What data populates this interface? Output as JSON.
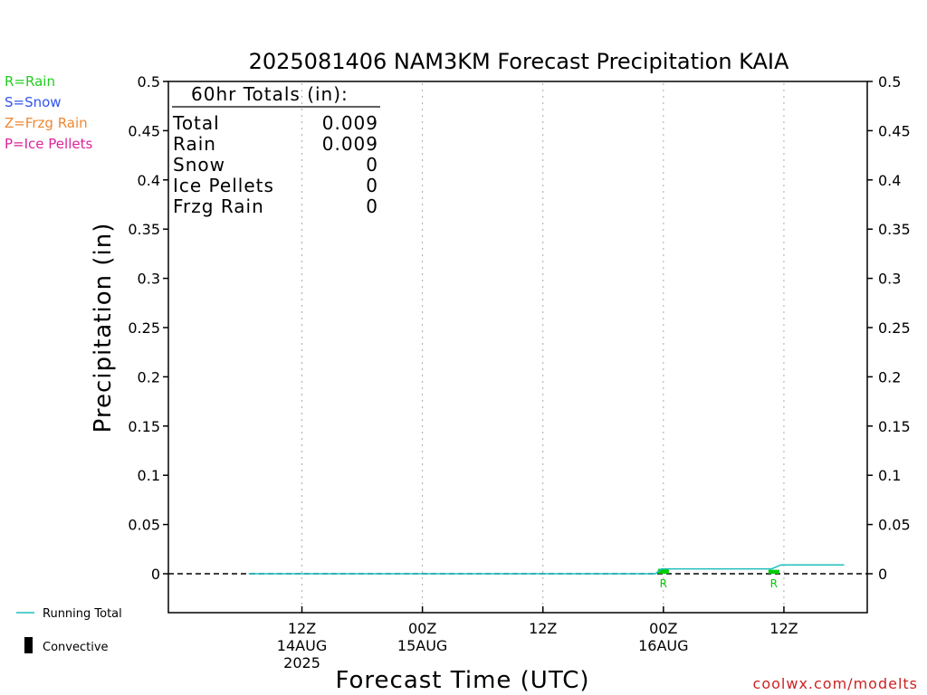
{
  "chart_data": {
    "type": "line",
    "title": "2025081406 NAM3KM Forecast Precipitation KAIA",
    "xlabel": "Forecast Time (UTC)",
    "ylabel": "Precipitation (in)",
    "ylim": [
      -0.04,
      0.5
    ],
    "yticks": [
      0,
      0.05,
      0.1,
      0.15,
      0.2,
      0.25,
      0.3,
      0.35,
      0.4,
      0.45,
      0.5
    ],
    "ytick_labels": [
      "0",
      "0.05",
      "0.1",
      "0.15",
      "0.2",
      "0.25",
      "0.3",
      "0.35",
      "0.4",
      "0.45",
      "0.5"
    ],
    "xlim": [
      0,
      60
    ],
    "xticks": [
      {
        "hour": 6,
        "label": "12Z",
        "sub1": "14AUG",
        "sub2": "2025"
      },
      {
        "hour": 18,
        "label": "00Z",
        "sub1": "15AUG",
        "sub2": ""
      },
      {
        "hour": 30,
        "label": "12Z",
        "sub1": "",
        "sub2": ""
      },
      {
        "hour": 42,
        "label": "00Z",
        "sub1": "16AUG",
        "sub2": ""
      },
      {
        "hour": 54,
        "label": "12Z",
        "sub1": "",
        "sub2": ""
      }
    ],
    "grid": "vertical dotted",
    "series": [
      {
        "name": "Running Total",
        "color": "#1fbfbf",
        "points": [
          [
            0.7,
            0
          ],
          [
            41.2,
            0
          ],
          [
            41.8,
            0.005
          ],
          [
            52.8,
            0.005
          ],
          [
            53.7,
            0.009
          ],
          [
            60,
            0.009
          ]
        ]
      }
    ],
    "precip_bars": [
      {
        "hour": 42,
        "value": 0.005,
        "type": "R",
        "color": "#00cc00"
      },
      {
        "hour": 53,
        "value": 0.004,
        "type": "R",
        "color": "#00cc00"
      }
    ],
    "totals_box": {
      "header": "60hr Totals (in):",
      "rows": [
        {
          "label": "Total",
          "value": "0.009"
        },
        {
          "label": "Rain",
          "value": "0.009"
        },
        {
          "label": "Snow",
          "value": "0"
        },
        {
          "label": "Ice Pellets",
          "value": "0"
        },
        {
          "label": "Frzg Rain",
          "value": "0"
        }
      ]
    }
  },
  "type_legend": [
    {
      "text": "R=Rain",
      "color": "#22cc22"
    },
    {
      "text": "S=Snow",
      "color": "#3355ee"
    },
    {
      "text": "Z=Frzg Rain",
      "color": "#ee8833"
    },
    {
      "text": "P=Ice Pellets",
      "color": "#dd2299"
    }
  ],
  "bottom_legend": {
    "running_total": "Running Total",
    "convective": "Convective"
  },
  "credit": "coolwx.com/modelts",
  "colors": {
    "axis": "#000000",
    "grid": "#aaaaaa",
    "rain": "#00cc00",
    "running_total": "#1fbfbf",
    "credit": "#cc2222"
  }
}
